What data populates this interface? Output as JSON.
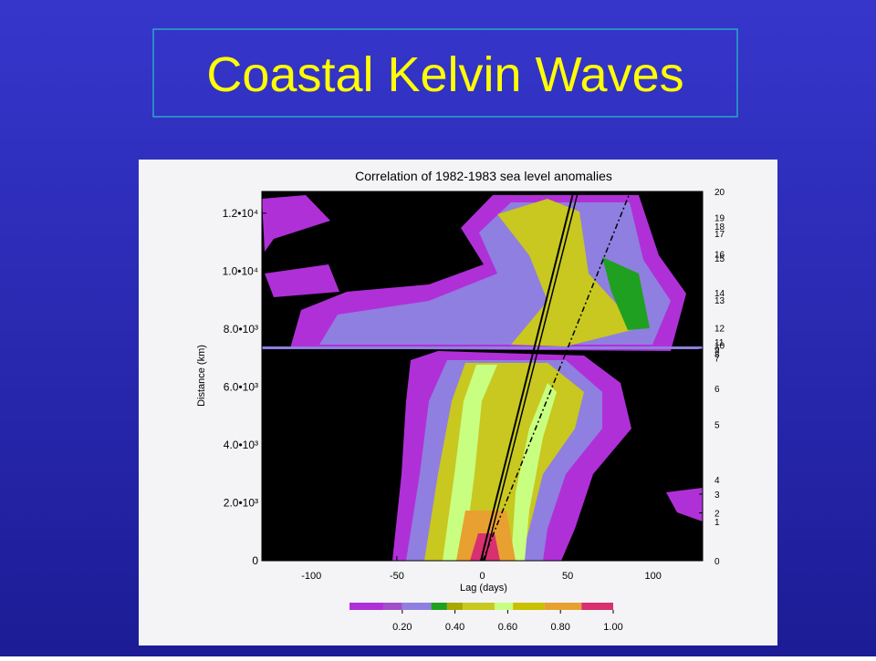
{
  "slide_title": "Coastal Kelvin Waves",
  "chart_data": {
    "type": "contour",
    "title": "Correlation of 1982-1983 sea level anomalies",
    "x_label": "Lag (days)",
    "y_label": "Distance (km)",
    "xlim": [
      -129,
      129
    ],
    "xticks": [
      -100,
      -50,
      0,
      50,
      100
    ],
    "ylim": [
      0,
      12750
    ],
    "yticks": [
      0,
      {
        "value": 2000,
        "label": "2.0•10³"
      },
      {
        "value": 4000,
        "label": "4.0•10³"
      },
      {
        "value": 6000,
        "label": "6.0•10³"
      },
      {
        "value": 8000,
        "label": "8.0•10³"
      },
      {
        "value": 10000,
        "label": "1.0•10⁴"
      },
      {
        "value": 12000,
        "label": "1.2•10⁴"
      }
    ],
    "station_ticks": [
      {
        "value": 12750,
        "label": "20"
      },
      {
        "value": 11850,
        "label": "19"
      },
      {
        "value": 11550,
        "label": "18"
      },
      {
        "value": 11300,
        "label": "17"
      },
      {
        "value": 10600,
        "label": "16"
      },
      {
        "value": 10450,
        "label": "15"
      },
      {
        "value": 9250,
        "label": "14"
      },
      {
        "value": 9000,
        "label": "13"
      },
      {
        "value": 8050,
        "label": "12"
      },
      {
        "value": 7550,
        "label": "11"
      },
      {
        "value": 7450,
        "label": "10"
      },
      {
        "value": 7300,
        "label": "9"
      },
      {
        "value": 7150,
        "label": "8"
      },
      {
        "value": 7000,
        "label": "7"
      },
      {
        "value": 5950,
        "label": "6"
      },
      {
        "value": 4700,
        "label": "5"
      },
      {
        "value": 2800,
        "label": "4"
      },
      {
        "value": 2300,
        "label": "3"
      },
      {
        "value": 1650,
        "label": "2"
      },
      {
        "value": 1350,
        "label": "1"
      },
      {
        "value": 0,
        "label": "0"
      }
    ],
    "colorbar": {
      "levels": [
        0,
        0.13,
        0.2,
        0.31,
        0.37,
        0.43,
        0.55,
        0.62,
        0.74,
        0.88,
        1.0
      ],
      "colors": [
        "#b030d8",
        "#a050c8",
        "#8f7fe0",
        "#20a020",
        "#a8a800",
        "#c8c820",
        "#c8ff80",
        "#c8c000",
        "#e8a030",
        "#d83070"
      ],
      "ticks": [
        {
          "value": 0.2,
          "label": "0.20"
        },
        {
          "value": 0.4,
          "label": "0.40"
        },
        {
          "value": 0.6,
          "label": "0.60"
        },
        {
          "value": 0.8,
          "label": "0.80"
        },
        {
          "value": 1.0,
          "label": "1.00"
        }
      ]
    }
  }
}
